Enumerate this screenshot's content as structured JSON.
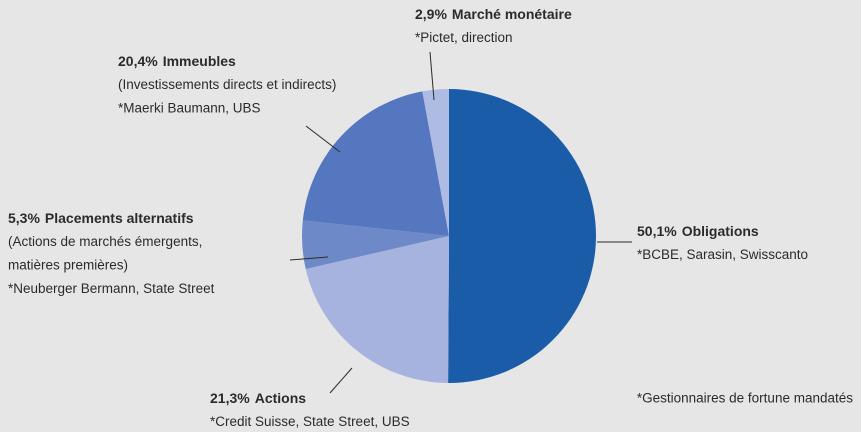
{
  "chart_data": {
    "type": "pie",
    "categories": [
      "Obligations",
      "Actions",
      "Placements alternatifs",
      "Immeubles",
      "Marché monétaire"
    ],
    "values": [
      50.1,
      21.3,
      5.3,
      20.4,
      2.9
    ],
    "value_labels": [
      "50,1%",
      "21,3%",
      "5,3%",
      "20,4%",
      "2,9%"
    ],
    "colors": [
      "#1b5ca9",
      "#a5b3de",
      "#6e89c8",
      "#5477bf",
      "#aebbe2"
    ],
    "details": [
      [
        "*BCBE, Sarasin, Swisscanto"
      ],
      [
        "*Credit Suisse, State Street, UBS"
      ],
      [
        "(Actions de marchés émergents,",
        "matières premières)",
        "*Neuberger Bermann, State Street"
      ],
      [
        "(Investissements directs et indirects)",
        "*Maerki Baumann, UBS"
      ],
      [
        "*Pictet, direction"
      ]
    ],
    "footnote": "*Gestionnaires de fortune mandatés"
  }
}
